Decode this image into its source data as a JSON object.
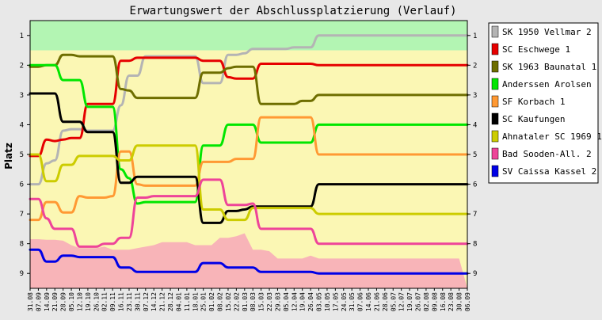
{
  "chart_data": {
    "type": "line",
    "title": "Erwartungswert der Abschlussplatzierung (Verlauf)",
    "ylabel": "Platz",
    "xlabel": "",
    "ylim": [
      0.5,
      9.5
    ],
    "y_inverted": true,
    "y_ticks": [
      "1",
      "2",
      "3",
      "4",
      "5",
      "6",
      "7",
      "8",
      "9"
    ],
    "grid": false,
    "legend_position": "right",
    "zones": [
      {
        "from": 0.5,
        "to": 1.5,
        "color": "#b3f5b3"
      },
      {
        "from": 1.5,
        "to": 9.5,
        "color": "#fbf7b4"
      }
    ],
    "categories": [
      "31.08",
      "07.09",
      "14.09",
      "21.09",
      "28.09",
      "05.10",
      "12.10",
      "19.10",
      "26.10",
      "02.11",
      "09.11",
      "16.11",
      "23.11",
      "30.11",
      "07.12",
      "14.12",
      "21.12",
      "28.12",
      "04.01",
      "11.01",
      "18.01",
      "25.01",
      "01.02",
      "08.02",
      "15.02",
      "22.02",
      "01.03",
      "08.03",
      "15.03",
      "22.03",
      "29.03",
      "05.04",
      "12.04",
      "19.04",
      "26.04",
      "03.05",
      "10.05",
      "17.05",
      "24.05",
      "31.05",
      "07.06",
      "14.06",
      "21.06",
      "28.06",
      "05.07",
      "12.07",
      "19.07",
      "26.07",
      "02.08",
      "09.08",
      "16.08",
      "23.08",
      "30.08",
      "06.09"
    ],
    "relegation_area": {
      "color": "#f8b4b8",
      "values": [
        7.85,
        7.85,
        7.87,
        7.87,
        7.9,
        8.05,
        8.15,
        8.15,
        8.15,
        8.1,
        8.2,
        8.2,
        8.2,
        8.15,
        8.1,
        8.05,
        7.95,
        7.95,
        7.95,
        7.95,
        8.05,
        8.05,
        8.05,
        7.8,
        7.8,
        7.75,
        7.65,
        8.2,
        8.2,
        8.25,
        8.5,
        8.5,
        8.5,
        8.5,
        8.4,
        8.5,
        8.5,
        8.5,
        8.5,
        8.5,
        8.5,
        8.5,
        8.5,
        8.5,
        8.5,
        8.5,
        8.5,
        8.5,
        8.5,
        8.5,
        8.5,
        8.5,
        8.5,
        9.5
      ]
    },
    "series": [
      {
        "name": "SK 1950 Vellmar 2",
        "color": "#b4b4b4",
        "values": [
          6.0,
          6.0,
          5.3,
          5.2,
          4.2,
          4.15,
          4.15,
          4.2,
          4.2,
          4.2,
          4.2,
          3.35,
          2.35,
          2.35,
          1.7,
          1.7,
          1.7,
          1.7,
          1.7,
          1.7,
          1.7,
          2.6,
          2.6,
          2.6,
          1.65,
          1.65,
          1.6,
          1.45,
          1.45,
          1.45,
          1.45,
          1.45,
          1.4,
          1.4,
          1.4,
          1.0,
          1.0,
          1.0,
          1.0,
          1.0,
          1.0,
          1.0,
          1.0,
          1.0,
          1.0,
          1.0,
          1.0,
          1.0,
          1.0,
          1.0,
          1.0,
          1.0,
          1.0,
          1.0
        ]
      },
      {
        "name": "SC Eschwege 1",
        "color": "#e60000",
        "values": [
          5.05,
          5.05,
          4.5,
          4.55,
          4.5,
          4.45,
          4.45,
          3.3,
          3.3,
          3.3,
          3.3,
          1.85,
          1.85,
          1.75,
          1.75,
          1.75,
          1.75,
          1.75,
          1.75,
          1.75,
          1.75,
          1.85,
          1.85,
          1.85,
          2.4,
          2.45,
          2.45,
          2.45,
          1.95,
          1.95,
          1.95,
          1.95,
          1.95,
          1.95,
          1.95,
          2.0,
          2.0,
          2.0,
          2.0,
          2.0,
          2.0,
          2.0,
          2.0,
          2.0,
          2.0,
          2.0,
          2.0,
          2.0,
          2.0,
          2.0,
          2.0,
          2.0,
          2.0,
          2.0
        ]
      },
      {
        "name": "SK 1963 Baunatal 1",
        "color": "#6e6e00",
        "values": [
          2.05,
          2.05,
          2.0,
          2.0,
          1.65,
          1.65,
          1.7,
          1.7,
          1.7,
          1.7,
          1.7,
          2.8,
          2.85,
          3.1,
          3.1,
          3.1,
          3.1,
          3.1,
          3.1,
          3.1,
          3.1,
          2.25,
          2.25,
          2.25,
          2.1,
          2.05,
          2.05,
          2.05,
          3.3,
          3.3,
          3.3,
          3.3,
          3.3,
          3.2,
          3.2,
          3.0,
          3.0,
          3.0,
          3.0,
          3.0,
          3.0,
          3.0,
          3.0,
          3.0,
          3.0,
          3.0,
          3.0,
          3.0,
          3.0,
          3.0,
          3.0,
          3.0,
          3.0,
          3.0
        ]
      },
      {
        "name": "Anderssen Arolsen",
        "color": "#00e600",
        "values": [
          2.0,
          2.0,
          2.0,
          2.0,
          2.5,
          2.5,
          2.5,
          3.4,
          3.4,
          3.4,
          3.4,
          5.5,
          5.8,
          6.65,
          6.6,
          6.6,
          6.6,
          6.6,
          6.6,
          6.6,
          6.6,
          4.7,
          4.7,
          4.7,
          4.0,
          4.0,
          4.0,
          4.0,
          4.6,
          4.6,
          4.6,
          4.6,
          4.6,
          4.6,
          4.6,
          4.0,
          4.0,
          4.0,
          4.0,
          4.0,
          4.0,
          4.0,
          4.0,
          4.0,
          4.0,
          4.0,
          4.0,
          4.0,
          4.0,
          4.0,
          4.0,
          4.0,
          4.0,
          4.0
        ]
      },
      {
        "name": "SF Korbach 1",
        "color": "#ff9933",
        "values": [
          7.2,
          7.2,
          6.6,
          6.6,
          6.95,
          6.95,
          6.4,
          6.45,
          6.45,
          6.45,
          6.4,
          4.9,
          4.9,
          6.0,
          6.05,
          6.05,
          6.05,
          6.05,
          6.05,
          6.05,
          6.05,
          5.25,
          5.25,
          5.25,
          5.25,
          5.15,
          5.15,
          5.15,
          3.75,
          3.75,
          3.75,
          3.75,
          3.75,
          3.75,
          3.75,
          5.0,
          5.0,
          5.0,
          5.0,
          5.0,
          5.0,
          5.0,
          5.0,
          5.0,
          5.0,
          5.0,
          5.0,
          5.0,
          5.0,
          5.0,
          5.0,
          5.0,
          5.0,
          5.0
        ]
      },
      {
        "name": "SC Kaufungen",
        "color": "#000000",
        "values": [
          2.95,
          2.95,
          2.95,
          2.95,
          3.9,
          3.9,
          3.9,
          4.25,
          4.25,
          4.25,
          4.25,
          5.95,
          5.95,
          5.75,
          5.75,
          5.75,
          5.75,
          5.75,
          5.75,
          5.75,
          5.75,
          7.3,
          7.3,
          7.3,
          6.9,
          6.9,
          6.85,
          6.75,
          6.75,
          6.75,
          6.75,
          6.75,
          6.75,
          6.75,
          6.75,
          6.0,
          6.0,
          6.0,
          6.0,
          6.0,
          6.0,
          6.0,
          6.0,
          6.0,
          6.0,
          6.0,
          6.0,
          6.0,
          6.0,
          6.0,
          6.0,
          6.0,
          6.0,
          6.0
        ]
      },
      {
        "name": "Ahnataler SC 1969 1",
        "color": "#cccc00",
        "values": [
          5.0,
          5.0,
          5.9,
          5.9,
          5.35,
          5.35,
          5.05,
          5.05,
          5.05,
          5.05,
          5.05,
          5.2,
          5.2,
          4.7,
          4.7,
          4.7,
          4.7,
          4.7,
          4.7,
          4.7,
          4.7,
          6.85,
          6.85,
          6.85,
          7.2,
          7.2,
          7.2,
          6.8,
          6.8,
          6.8,
          6.8,
          6.8,
          6.8,
          6.8,
          6.8,
          7.0,
          7.0,
          7.0,
          7.0,
          7.0,
          7.0,
          7.0,
          7.0,
          7.0,
          7.0,
          7.0,
          7.0,
          7.0,
          7.0,
          7.0,
          7.0,
          7.0,
          7.0,
          7.0
        ]
      },
      {
        "name": "Bad Sooden-All. 2",
        "color": "#ee4499",
        "values": [
          6.5,
          6.5,
          7.15,
          7.5,
          7.5,
          7.5,
          8.1,
          8.1,
          8.1,
          8.0,
          8.0,
          7.8,
          7.8,
          6.45,
          6.45,
          6.4,
          6.4,
          6.4,
          6.4,
          6.4,
          6.4,
          5.85,
          5.85,
          5.85,
          6.7,
          6.7,
          6.7,
          6.65,
          7.5,
          7.5,
          7.5,
          7.5,
          7.5,
          7.5,
          7.5,
          8.0,
          8.0,
          8.0,
          8.0,
          8.0,
          8.0,
          8.0,
          8.0,
          8.0,
          8.0,
          8.0,
          8.0,
          8.0,
          8.0,
          8.0,
          8.0,
          8.0,
          8.0,
          8.0
        ]
      },
      {
        "name": "SV Caissa Kassel 2",
        "color": "#0000e6",
        "values": [
          8.2,
          8.2,
          8.6,
          8.6,
          8.4,
          8.4,
          8.45,
          8.45,
          8.45,
          8.45,
          8.45,
          8.8,
          8.8,
          8.95,
          8.95,
          8.95,
          8.95,
          8.95,
          8.95,
          8.95,
          8.95,
          8.65,
          8.65,
          8.65,
          8.8,
          8.8,
          8.8,
          8.8,
          8.95,
          8.95,
          8.95,
          8.95,
          8.95,
          8.95,
          8.95,
          9.0,
          9.0,
          9.0,
          9.0,
          9.0,
          9.0,
          9.0,
          9.0,
          9.0,
          9.0,
          9.0,
          9.0,
          9.0,
          9.0,
          9.0,
          9.0,
          9.0,
          9.0,
          9.0
        ]
      }
    ]
  }
}
